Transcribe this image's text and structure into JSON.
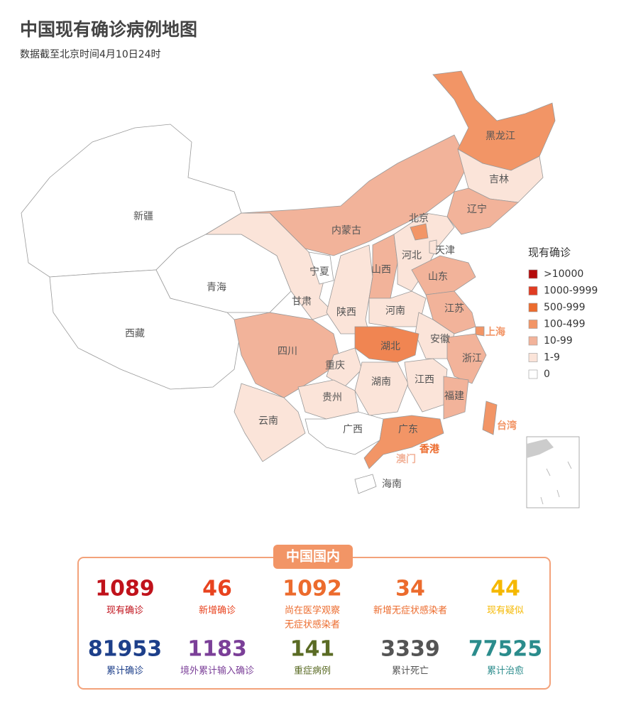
{
  "header": {
    "title": "中国现有确诊病例地图",
    "subtitle": "数据截至北京时间4月10日24时"
  },
  "map": {
    "provinces": [
      {
        "name": "新疆",
        "color": "#ffffff"
      },
      {
        "name": "西藏",
        "color": "#ffffff"
      },
      {
        "name": "青海",
        "color": "#ffffff"
      },
      {
        "name": "甘肃",
        "color": "#fbe4d9"
      },
      {
        "name": "内蒙古",
        "color": "#f2b39a"
      },
      {
        "name": "黑龙江",
        "color": "#f29566"
      },
      {
        "name": "吉林",
        "color": "#fbe4d9"
      },
      {
        "name": "辽宁",
        "color": "#f2b39a"
      },
      {
        "name": "宁夏",
        "color": "#ffffff"
      },
      {
        "name": "陕西",
        "color": "#fbe4d9"
      },
      {
        "name": "山西",
        "color": "#f2b39a"
      },
      {
        "name": "河北",
        "color": "#fbe4d9"
      },
      {
        "name": "北京",
        "color": "#f29566"
      },
      {
        "name": "天津",
        "color": "#fbe4d9"
      },
      {
        "name": "山东",
        "color": "#f2b39a"
      },
      {
        "name": "河南",
        "color": "#fbe4d9"
      },
      {
        "name": "江苏",
        "color": "#f2b39a"
      },
      {
        "name": "安徽",
        "color": "#fbe4d9"
      },
      {
        "name": "湖北",
        "color": "#f08552"
      },
      {
        "name": "上海",
        "color": "#f29566"
      },
      {
        "name": "浙江",
        "color": "#f2b39a"
      },
      {
        "name": "四川",
        "color": "#f2b39a"
      },
      {
        "name": "重庆",
        "color": "#fbe4d9"
      },
      {
        "name": "湖南",
        "color": "#fbe4d9"
      },
      {
        "name": "江西",
        "color": "#fbe4d9"
      },
      {
        "name": "福建",
        "color": "#f2b39a"
      },
      {
        "name": "贵州",
        "color": "#fbe4d9"
      },
      {
        "name": "云南",
        "color": "#fbe4d9"
      },
      {
        "name": "广西",
        "color": "#ffffff"
      },
      {
        "name": "广东",
        "color": "#f29566"
      },
      {
        "name": "台湾",
        "color": "#f29566"
      },
      {
        "name": "海南",
        "color": "#ffffff"
      },
      {
        "name": "香港",
        "color": "#ec6b2d"
      },
      {
        "name": "澳门",
        "color": "#f2b39a"
      }
    ]
  },
  "legend": {
    "title": "现有确诊",
    "items": [
      {
        "label": ">10000",
        "color": "#b50b0b"
      },
      {
        "label": "1000-9999",
        "color": "#e03c22"
      },
      {
        "label": "500-999",
        "color": "#ec6b2d"
      },
      {
        "label": "100-499",
        "color": "#f29566"
      },
      {
        "label": "10-99",
        "color": "#f2b39a"
      },
      {
        "label": "1-9",
        "color": "#fbe4d9"
      },
      {
        "label": "0",
        "color": "#ffffff"
      }
    ]
  },
  "stats": {
    "title": "中国国内",
    "items": [
      {
        "value": 1089,
        "label": [
          "现有确诊"
        ],
        "color": "#c0121b"
      },
      {
        "value": 46,
        "label": [
          "新增确诊"
        ],
        "color": "#e8431f"
      },
      {
        "value": 1092,
        "label": [
          "尚在医学观察",
          "无症状感染者"
        ],
        "color": "#ec6b2d"
      },
      {
        "value": 34,
        "label": [
          "新增无症状感染者"
        ],
        "color": "#ec6b2d"
      },
      {
        "value": 44,
        "label": [
          "现有疑似"
        ],
        "color": "#f5b800"
      },
      {
        "value": 81953,
        "label": [
          "累计确诊"
        ],
        "color": "#1d3f8a"
      },
      {
        "value": 1183,
        "label": [
          "境外累计输入确诊"
        ],
        "color": "#7b3f98"
      },
      {
        "value": 141,
        "label": [
          "重症病例"
        ],
        "color": "#5a6b24"
      },
      {
        "value": 3339,
        "label": [
          "累计死亡"
        ],
        "color": "#555555"
      },
      {
        "value": 77525,
        "label": [
          "累计治愈"
        ],
        "color": "#2b8c8c"
      }
    ]
  }
}
